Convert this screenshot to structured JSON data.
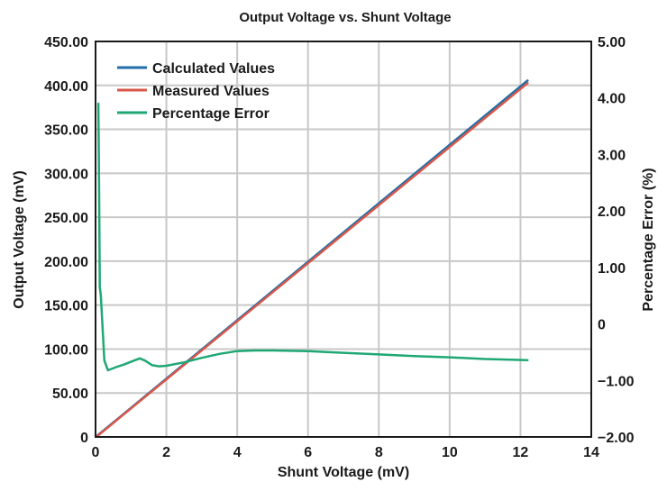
{
  "chart_data": {
    "type": "line",
    "title": "Output Voltage vs. Shunt Voltage",
    "xlabel": "Shunt Voltage (mV)",
    "ylabel": "Output Voltage (mV)",
    "y2label": "Percentage Error (%)",
    "xlim": [
      0,
      14
    ],
    "ylim": [
      0,
      450
    ],
    "y2lim": [
      -2,
      5
    ],
    "x_ticks": [
      "0",
      "2",
      "4",
      "6",
      "8",
      "10",
      "12",
      "14"
    ],
    "y_ticks": [
      "0",
      "50.00",
      "100.00",
      "150.00",
      "200.00",
      "250.00",
      "300.00",
      "350.00",
      "400.00",
      "450.00"
    ],
    "y2_ticks": [
      "−2.00",
      "−1.00",
      "0",
      "1.00",
      "2.00",
      "3.00",
      "4.00",
      "5.00"
    ],
    "grid": true,
    "legend_position": "top-left",
    "series": [
      {
        "name": "Calculated Values",
        "axis": "left",
        "color": "#1f6fa8",
        "x": [
          0.05,
          12.2
        ],
        "y": [
          1.5,
          405.5
        ]
      },
      {
        "name": "Measured Values",
        "axis": "left",
        "color": "#d9574a",
        "x": [
          0.05,
          12.2
        ],
        "y": [
          1.0,
          402.5
        ]
      },
      {
        "name": "Percentage Error",
        "axis": "right",
        "color": "#1fa874",
        "x": [
          0.08,
          0.1,
          0.12,
          0.15,
          0.2,
          0.25,
          0.35,
          0.6,
          0.8,
          1.0,
          1.25,
          1.4,
          1.6,
          1.8,
          2.0,
          2.5,
          3.0,
          3.5,
          4.0,
          4.5,
          5.0,
          6.0,
          7.0,
          8.0,
          9.0,
          10.0,
          11.0,
          12.2
        ],
        "y": [
          3.9,
          2.5,
          0.65,
          0.5,
          -0.1,
          -0.65,
          -0.82,
          -0.76,
          -0.72,
          -0.67,
          -0.61,
          -0.65,
          -0.73,
          -0.75,
          -0.74,
          -0.68,
          -0.6,
          -0.53,
          -0.48,
          -0.47,
          -0.47,
          -0.48,
          -0.51,
          -0.54,
          -0.57,
          -0.59,
          -0.62,
          -0.64
        ]
      }
    ]
  }
}
